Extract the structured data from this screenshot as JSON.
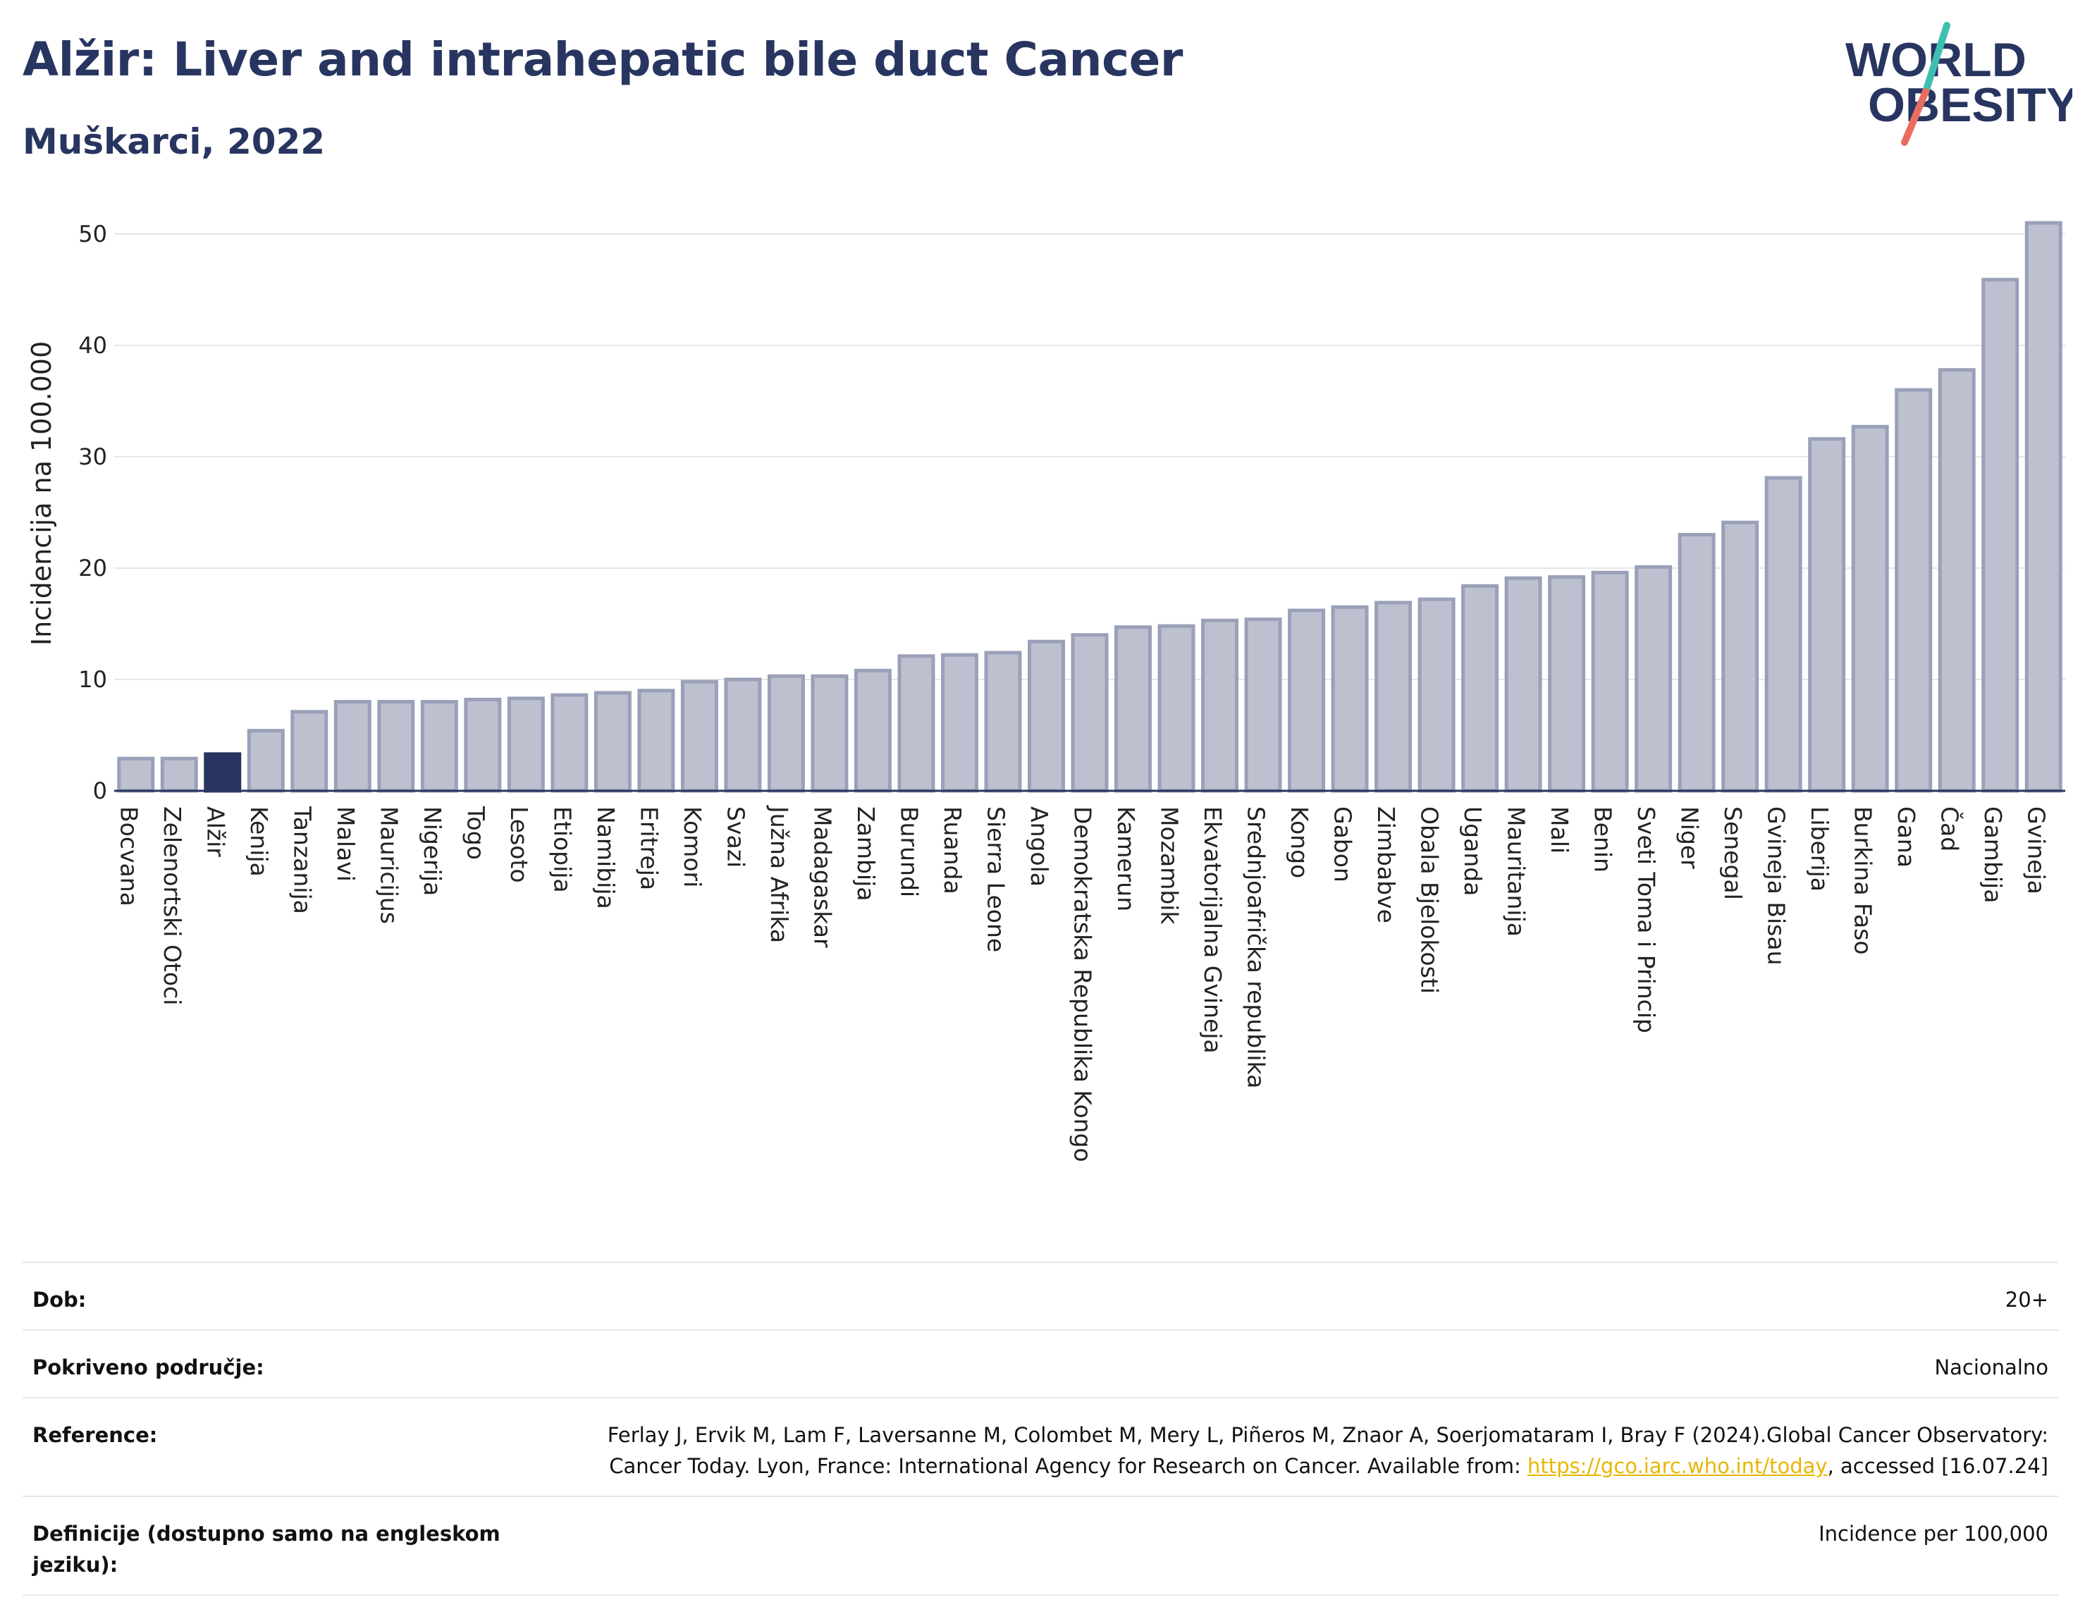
{
  "header": {
    "title": "Alžir: Liver and intrahepatic bile duct Cancer",
    "subtitle": "Muškarci, 2022",
    "logo_text_line1": "WORLD",
    "logo_text_line2": "OBESITY"
  },
  "colors": {
    "highlight_bar": "#283560",
    "bar_fill": "#bcc0cf",
    "bar_stroke": "#9aa0b8",
    "text": "#283560",
    "grid": "#e6e6e6",
    "logo_teal": "#3fbfb0",
    "logo_coral": "#e96d5f",
    "link": "#e8b600"
  },
  "chart_data": {
    "type": "bar",
    "title": "Alžir: Liver and intrahepatic bile duct Cancer",
    "subtitle": "Muškarci, 2022",
    "xlabel": "",
    "ylabel": "Incidencija na 100.000",
    "ylim": [
      0,
      53
    ],
    "yticks": [
      0,
      10,
      20,
      30,
      40,
      50
    ],
    "grid": true,
    "highlight": "Alžir",
    "categories": [
      "Bocvana",
      "Zelenortski Otoci",
      "Alžir",
      "Kenija",
      "Tanzanija",
      "Malavi",
      "Mauricijus",
      "Nigerija",
      "Togo",
      "Lesoto",
      "Etiopija",
      "Namibija",
      "Eritreja",
      "Komori",
      "Svazi",
      "Južna Afrika",
      "Madagaskar",
      "Zambija",
      "Burundi",
      "Ruanda",
      "Sierra Leone",
      "Angola",
      "Demokratska Republika Kongo",
      "Kamerun",
      "Mozambik",
      "Ekvatorijalna Gvineja",
      "Srednjoafrička republika",
      "Kongo",
      "Gabon",
      "Zimbabve",
      "Obala Bjelokosti",
      "Uganda",
      "Mauritanija",
      "Mali",
      "Benin",
      "Sveti Toma i Princip",
      "Niger",
      "Senegal",
      "Gvineja Bisau",
      "Liberija",
      "Burkina Faso",
      "Gana",
      "Čad",
      "Gambija",
      "Gvineja"
    ],
    "values": [
      2.9,
      2.9,
      3.3,
      5.4,
      7.1,
      8.0,
      8.0,
      8.0,
      8.2,
      8.3,
      8.6,
      8.8,
      9.0,
      9.8,
      10.0,
      10.3,
      10.3,
      10.8,
      12.1,
      12.2,
      12.4,
      13.4,
      14.0,
      14.7,
      14.8,
      15.3,
      15.4,
      16.2,
      16.5,
      16.9,
      17.2,
      18.4,
      19.1,
      19.2,
      19.6,
      20.1,
      23.0,
      24.1,
      28.1,
      31.6,
      32.7,
      36.0,
      37.8,
      45.9,
      51.0
    ]
  },
  "meta": {
    "age_label": "Dob:",
    "age_value": "20+",
    "coverage_label": "Pokriveno područje:",
    "coverage_value": "Nacionalno",
    "reference_label": "Reference:",
    "reference_text_1": "Ferlay J, Ervik M, Lam F, Laversanne M, Colombet M, Mery L, Piñeros M, Znaor A, Soerjomataram I, Bray F (2024).Global Cancer Observatory: Cancer Today. Lyon, France: International Agency for Research on Cancer. Available from: ",
    "reference_link": "https://gco.iarc.who.int/today",
    "reference_text_2": ", accessed [16.07.24]",
    "definitions_label": "Definicije (dostupno samo na engleskom jeziku):",
    "definitions_value": "Incidence per 100,000"
  }
}
